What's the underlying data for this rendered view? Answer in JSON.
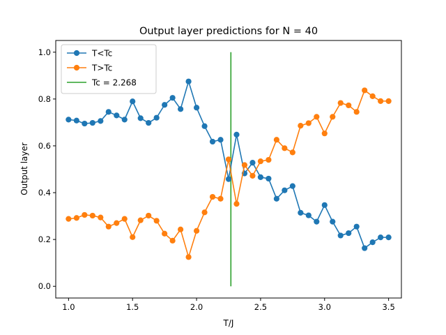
{
  "chart_data": {
    "type": "line",
    "title": "Output layer predictions for N = 40",
    "xlabel": "T/J",
    "ylabel": "Output layer",
    "xlim": [
      0.9,
      3.6
    ],
    "ylim": [
      -0.05,
      1.05
    ],
    "xticks": [
      1.0,
      1.5,
      2.0,
      2.5,
      3.0,
      3.5
    ],
    "xtick_labels": [
      "1.0",
      "1.5",
      "2.0",
      "2.5",
      "3.0",
      "3.5"
    ],
    "yticks": [
      0.0,
      0.2,
      0.4,
      0.6,
      0.8,
      1.0
    ],
    "ytick_labels": [
      "0.0",
      "0.2",
      "0.4",
      "0.6",
      "0.8",
      "1.0"
    ],
    "grid": false,
    "legend_position": "upper-left",
    "x": [
      1.0,
      1.0625,
      1.125,
      1.1875,
      1.25,
      1.3125,
      1.375,
      1.4375,
      1.5,
      1.5625,
      1.625,
      1.6875,
      1.75,
      1.8125,
      1.875,
      1.9375,
      2.0,
      2.0625,
      2.125,
      2.1875,
      2.25,
      2.3125,
      2.375,
      2.4375,
      2.5,
      2.5625,
      2.625,
      2.6875,
      2.75,
      2.8125,
      2.875,
      2.9375,
      3.0,
      3.0625,
      3.125,
      3.1875,
      3.25,
      3.3125,
      3.375,
      3.4375,
      3.5
    ],
    "series": [
      {
        "name": "T<Tc",
        "color": "#1f77b4",
        "marker": "circle",
        "values": [
          0.712,
          0.708,
          0.695,
          0.698,
          0.706,
          0.745,
          0.73,
          0.712,
          0.79,
          0.718,
          0.698,
          0.72,
          0.775,
          0.805,
          0.757,
          0.875,
          0.763,
          0.684,
          0.618,
          0.626,
          0.458,
          0.648,
          0.482,
          0.528,
          0.466,
          0.46,
          0.374,
          0.41,
          0.428,
          0.314,
          0.303,
          0.276,
          0.347,
          0.276,
          0.217,
          0.227,
          0.255,
          0.163,
          0.188,
          0.209,
          0.209
        ]
      },
      {
        "name": "T>Tc",
        "color": "#ff7f0e",
        "marker": "circle",
        "values": [
          0.288,
          0.292,
          0.305,
          0.302,
          0.294,
          0.255,
          0.27,
          0.288,
          0.21,
          0.282,
          0.302,
          0.28,
          0.225,
          0.195,
          0.243,
          0.125,
          0.237,
          0.316,
          0.382,
          0.374,
          0.542,
          0.352,
          0.518,
          0.472,
          0.534,
          0.54,
          0.626,
          0.59,
          0.572,
          0.686,
          0.697,
          0.724,
          0.653,
          0.724,
          0.783,
          0.773,
          0.745,
          0.837,
          0.812,
          0.791,
          0.791
        ]
      }
    ],
    "vline": {
      "name": "Tc = 2.268",
      "x": 2.268,
      "y_range": [
        0.0,
        1.0
      ],
      "color": "#2ca02c"
    }
  }
}
